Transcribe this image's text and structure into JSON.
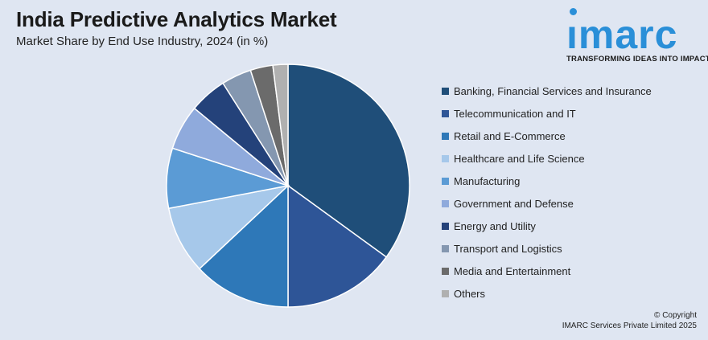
{
  "header": {
    "title": "India Predictive Analytics Market",
    "subtitle": "Market Share by End Use Industry, 2024 (in %)"
  },
  "logo": {
    "word": "ımarc",
    "tagline": "TRANSFORMING IDEAS INTO IMPACT",
    "color": "#2a8fd8"
  },
  "footer": {
    "line1": "© Copyright",
    "line2": "IMARC Services Private Limited 2025"
  },
  "chart_data": {
    "type": "pie",
    "title": "India Predictive Analytics Market",
    "subtitle": "Market Share by End Use Industry, 2024 (in %)",
    "legend_position": "right",
    "slices": [
      {
        "name": "Banking, Financial Services and Insurance",
        "value": 35,
        "color": "#1f4e79"
      },
      {
        "name": "Telecommunication and IT",
        "value": 15,
        "color": "#2e5597"
      },
      {
        "name": "Retail and E-Commerce",
        "value": 13,
        "color": "#2e78b8"
      },
      {
        "name": "Healthcare and Life Science",
        "value": 9,
        "color": "#a6c8ea"
      },
      {
        "name": "Manufacturing",
        "value": 8,
        "color": "#5b9bd5"
      },
      {
        "name": "Government and Defense",
        "value": 6,
        "color": "#8faadc"
      },
      {
        "name": "Energy and Utility",
        "value": 5,
        "color": "#24427a"
      },
      {
        "name": "Transport and Logistics",
        "value": 4,
        "color": "#8497b0"
      },
      {
        "name": "Media and Entertainment",
        "value": 3,
        "color": "#6b6b6b"
      },
      {
        "name": "Others",
        "value": 2,
        "color": "#b0b0b0"
      }
    ]
  }
}
